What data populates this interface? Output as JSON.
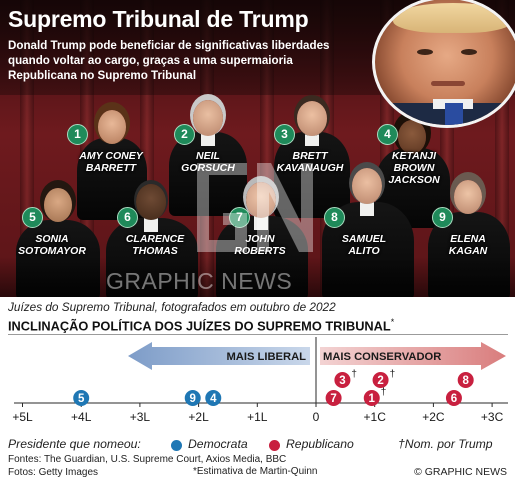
{
  "header": {
    "title": "Supremo Tribunal de Trump",
    "subtitle": "Donald Trump pode beneficiar de significativas liberdades quando voltar ao cargo, graças a uma supermaioria Republicana no Supremo Tribunal"
  },
  "justices": [
    {
      "number": "1",
      "name_line1": "AMY CONEY",
      "name_line2": "BARRETT",
      "name_line3": ""
    },
    {
      "number": "2",
      "name_line1": "NEIL",
      "name_line2": "GORSUCH",
      "name_line3": ""
    },
    {
      "number": "3",
      "name_line1": "BRETT",
      "name_line2": "KAVANAUGH",
      "name_line3": ""
    },
    {
      "number": "4",
      "name_line1": "KETANJI",
      "name_line2": "BROWN",
      "name_line3": "JACKSON"
    },
    {
      "number": "5",
      "name_line1": "SONIA",
      "name_line2": "SOTOMAYOR",
      "name_line3": ""
    },
    {
      "number": "6",
      "name_line1": "CLARENCE",
      "name_line2": "THOMAS",
      "name_line3": ""
    },
    {
      "number": "7",
      "name_line1": "JOHN",
      "name_line2": "ROBERTS",
      "name_line3": ""
    },
    {
      "number": "8",
      "name_line1": "SAMUEL",
      "name_line2": "ALITO",
      "name_line3": ""
    },
    {
      "number": "9",
      "name_line1": "ELENA",
      "name_line2": "KAGAN",
      "name_line3": ""
    }
  ],
  "watermark": "GRAPHIC NEWS",
  "caption": "Juízes do Supremo Tribunal, fotografados em outubro de 2022",
  "chart_title": "INCLINAÇÃO POLÍTICA DOS JUÍZES DO SUPREMO TRIBUNAL",
  "chart_title_mark": "*",
  "colors": {
    "democrat": "#1f77b4",
    "republican": "#c8203f",
    "liberal_arrow": "#9fb7d6",
    "conservative_arrow": "#e7a3a3",
    "badge": "#1f8a5a"
  },
  "chart_data": {
    "type": "scatter",
    "x_scale": "Martin-Quinn",
    "x_range": [
      -5,
      3
    ],
    "ticks": [
      "+5L",
      "+4L",
      "+3L",
      "+2L",
      "+1L",
      "0",
      "+1C",
      "+2C",
      "+3C"
    ],
    "tick_values": [
      -5,
      -4,
      -3,
      -2,
      -1,
      0,
      1,
      2,
      3
    ],
    "direction_labels": {
      "liberal": "MAIS LIBERAL",
      "conservative": "MAIS CONSERVADOR"
    },
    "points": [
      {
        "label": "5",
        "x": -4.0,
        "row": 2,
        "party": "democrat",
        "trump": false
      },
      {
        "label": "9",
        "x": -2.1,
        "row": 2,
        "party": "democrat",
        "trump": false
      },
      {
        "label": "4",
        "x": -1.75,
        "row": 2,
        "party": "democrat",
        "trump": false
      },
      {
        "label": "3",
        "x": 0.45,
        "row": 1,
        "party": "republican",
        "trump": true
      },
      {
        "label": "7",
        "x": 0.3,
        "row": 2,
        "party": "republican",
        "trump": false
      },
      {
        "label": "2",
        "x": 1.1,
        "row": 1,
        "party": "republican",
        "trump": true
      },
      {
        "label": "1",
        "x": 0.95,
        "row": 2,
        "party": "republican",
        "trump": true
      },
      {
        "label": "8",
        "x": 2.55,
        "row": 1,
        "party": "republican",
        "trump": false
      },
      {
        "label": "6",
        "x": 2.35,
        "row": 2,
        "party": "republican",
        "trump": false
      }
    ],
    "dagger": "†"
  },
  "legend": {
    "title": "Presidente que nomeou:",
    "democrat": "Democrata",
    "republican": "Republicano",
    "trump_note": "†Nom. por Trump"
  },
  "sources": {
    "line1": "Fontes: The Guardian, U.S. Supreme Court, Axios Media, BBC",
    "line2": "Fotos: Getty Images"
  },
  "footnote": "*Estimativa de Martin-Quinn",
  "credit": "© GRAPHIC NEWS"
}
